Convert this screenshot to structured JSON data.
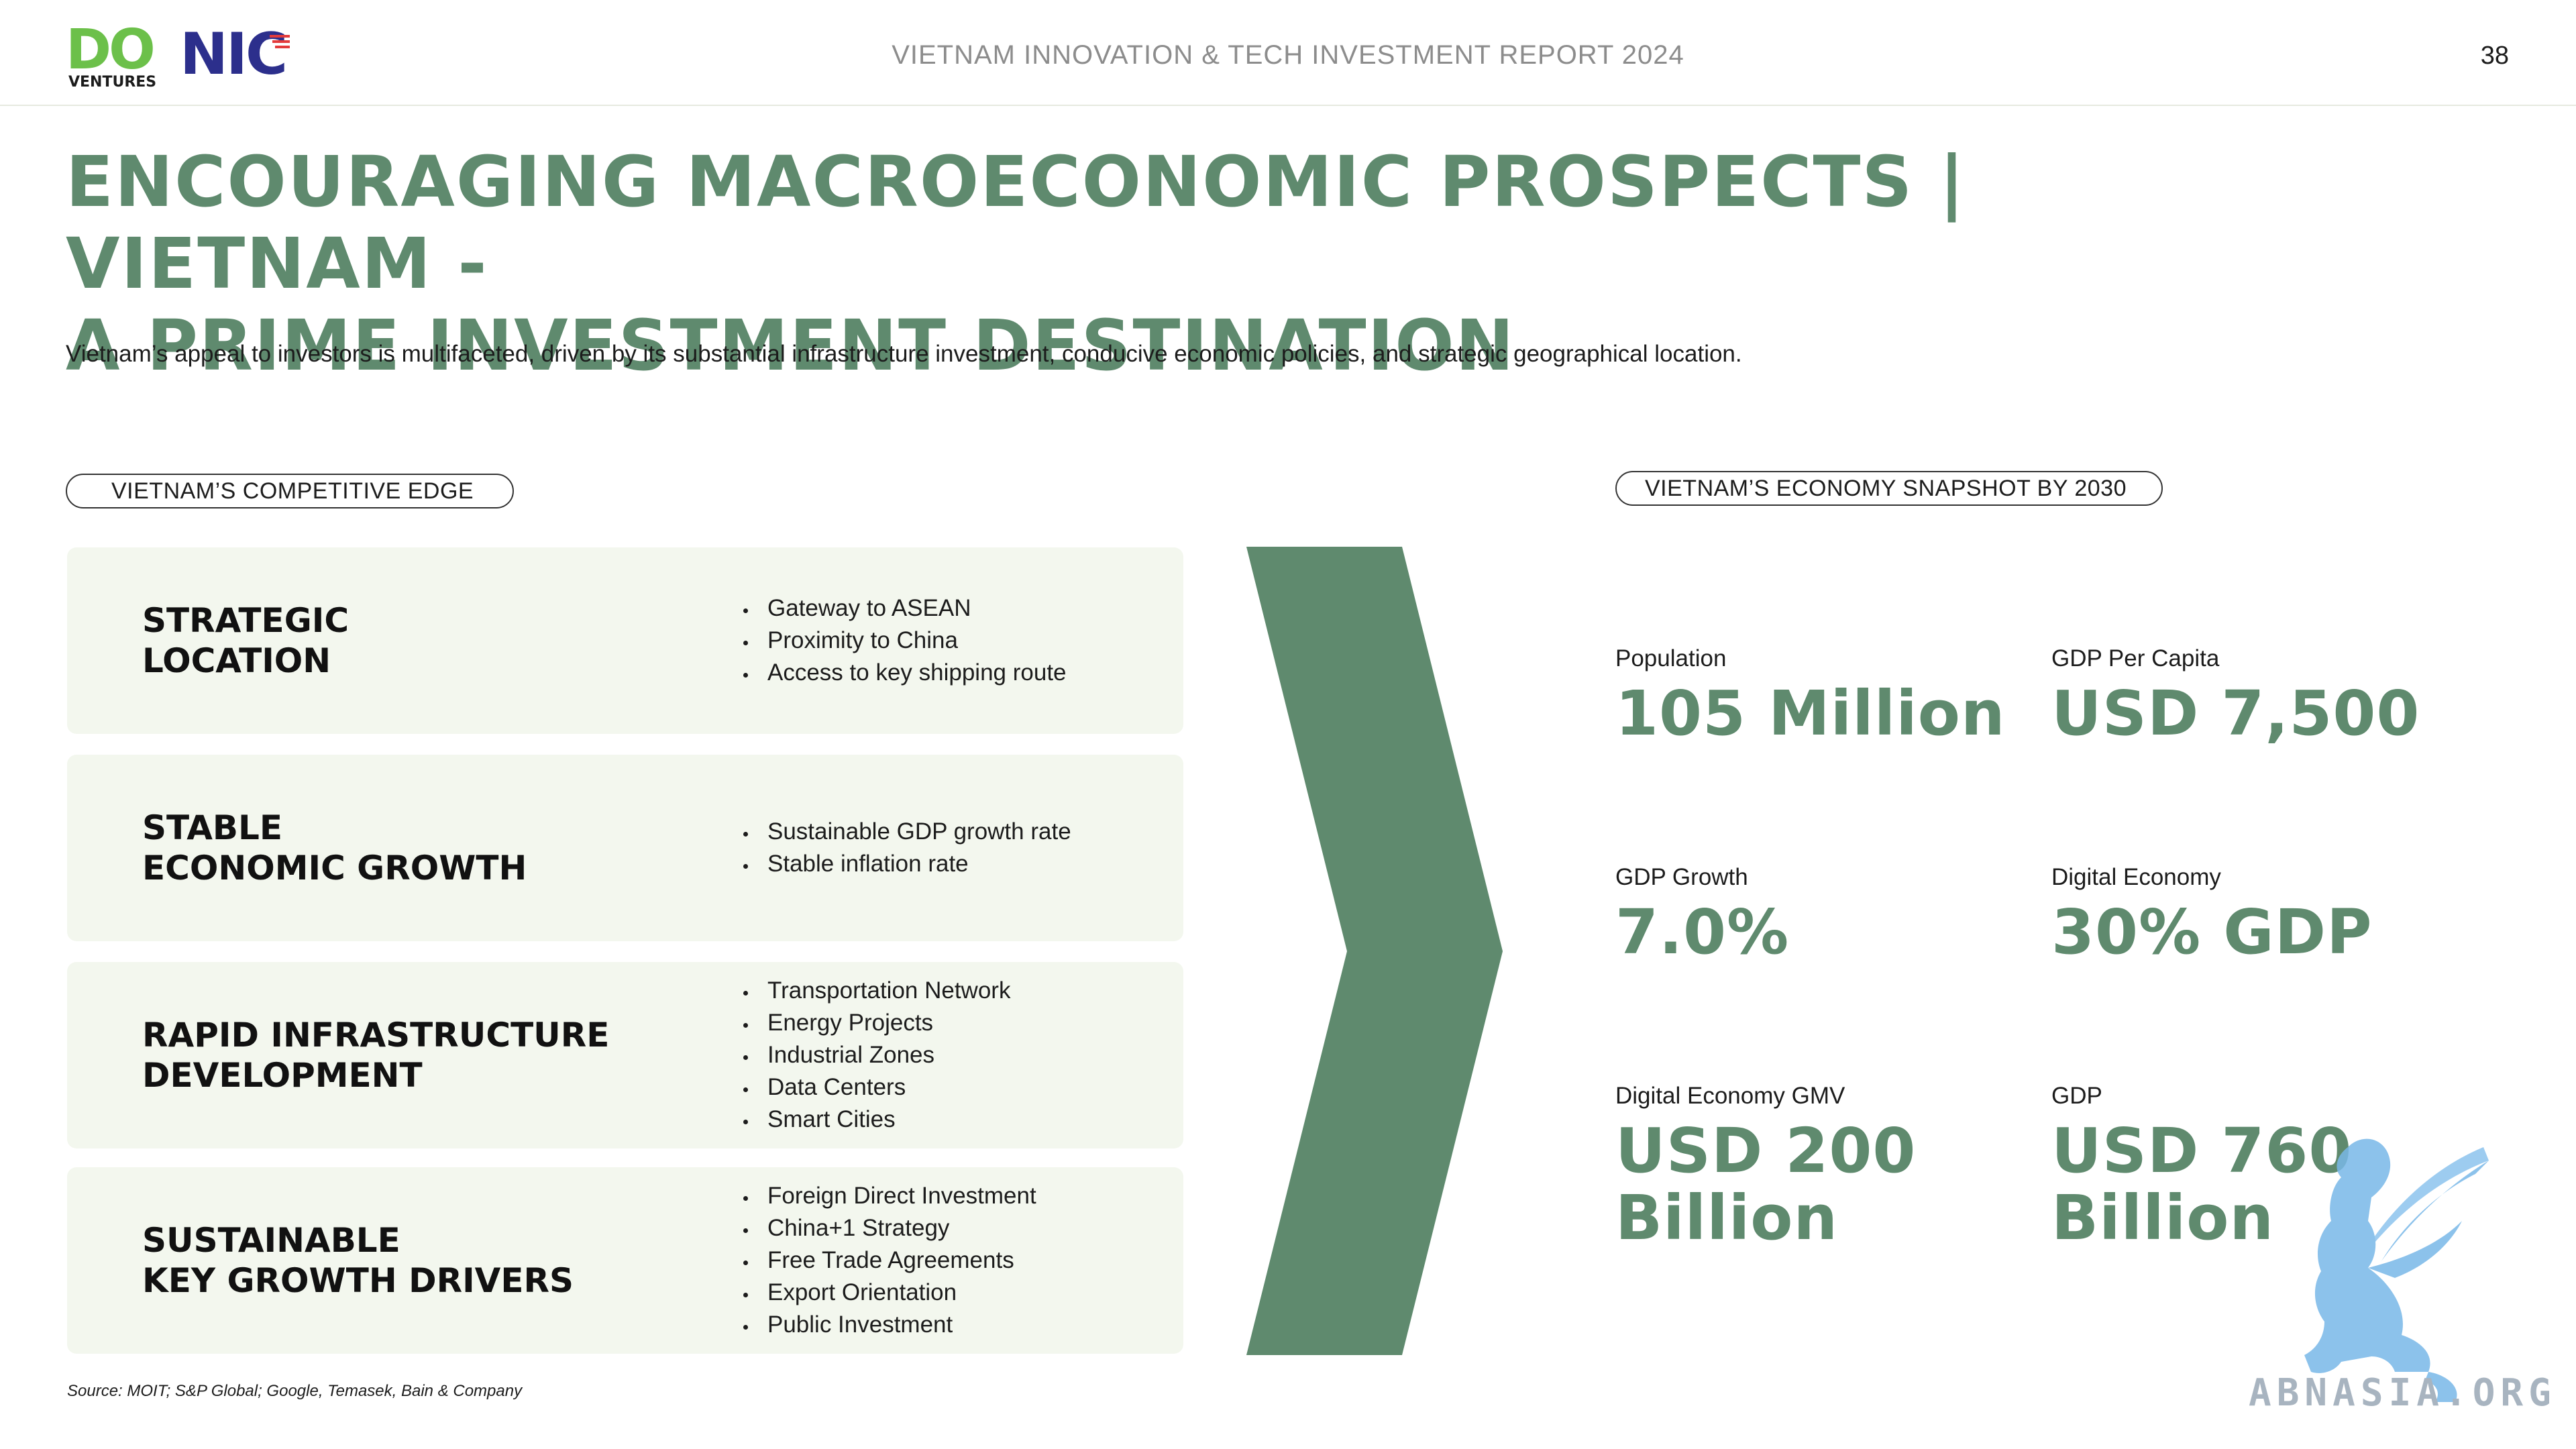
{
  "header": {
    "logo_do": "DO",
    "logo_do_sub": "VENTURES",
    "logo_nic": "NIC",
    "title": "VIETNAM INNOVATION & TECH INVESTMENT REPORT 2024",
    "page_number": "38"
  },
  "title_line1": "ENCOURAGING MACROECONOMIC PROSPECTS | VIETNAM -",
  "title_line2": "A PRIME INVESTMENT DESTINATION",
  "intro": "Vietnam’s appeal to investors is multifaceted, driven by its substantial infrastructure investment, conducive economic policies, and strategic geographical location.",
  "left_section": {
    "label": "VIETNAM’S COMPETITIVE EDGE",
    "cards": [
      {
        "title_line1": "STRATEGIC",
        "title_line2": "LOCATION",
        "points": [
          "Gateway to ASEAN",
          "Proximity to China",
          "Access to key shipping route"
        ]
      },
      {
        "title_line1": "STABLE",
        "title_line2": "ECONOMIC GROWTH",
        "points": [
          "Sustainable GDP growth rate",
          "Stable inflation rate"
        ]
      },
      {
        "title_line1": "RAPID INFRASTRUCTURE",
        "title_line2": "DEVELOPMENT",
        "points": [
          "Transportation Network",
          "Energy Projects",
          "Industrial Zones",
          "Data Centers",
          "Smart Cities"
        ]
      },
      {
        "title_line1": "SUSTAINABLE",
        "title_line2": "KEY GROWTH DRIVERS",
        "points": [
          "Foreign Direct Investment",
          "China+1 Strategy",
          "Free Trade Agreements",
          "Export Orientation",
          "Public Investment"
        ]
      }
    ]
  },
  "right_section": {
    "label": "VIETNAM’S ECONOMY SNAPSHOT BY 2030",
    "stats": [
      {
        "label": "Population",
        "value_line1": "105 Million",
        "value_line2": ""
      },
      {
        "label": "GDP Per Capita",
        "value_line1": "USD 7,500",
        "value_line2": ""
      },
      {
        "label": "GDP Growth",
        "value_line1": "7.0%",
        "value_line2": ""
      },
      {
        "label": "Digital Economy",
        "value_line1": "30% GDP",
        "value_line2": ""
      },
      {
        "label": "Digital Economy GMV",
        "value_line1": "USD 200",
        "value_line2": "Billion"
      },
      {
        "label": "GDP",
        "value_line1": "USD 760",
        "value_line2": "Billion"
      }
    ]
  },
  "source": "Source: MOIT; S&P Global; Google, Temasek, Bain & Company",
  "watermark": "ABNASIA.ORG",
  "colors": {
    "accent_green": "#5f8a6e",
    "card_bg": "#f3f7ee",
    "logo_do_green": "#6cc04a",
    "logo_nic_blue": "#2c2f8c",
    "watermark_blue": "#79b8e8"
  }
}
